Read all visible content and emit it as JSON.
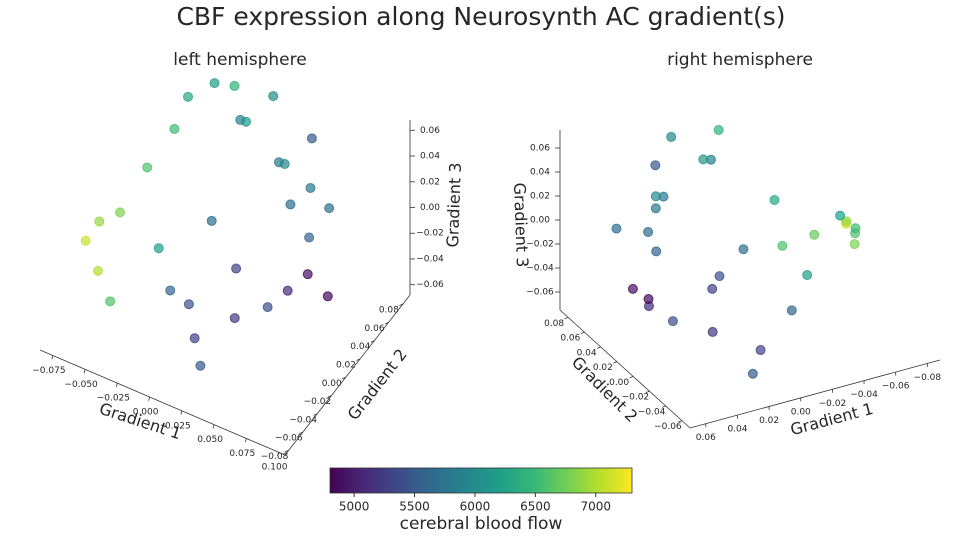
{
  "title": "CBF expression along Neurosynth AC gradient(s)",
  "colorbar": {
    "label": "cerebral blood flow",
    "colormap": "viridis",
    "clim": [
      4800,
      7300
    ],
    "ticks": [
      5000,
      5500,
      6000,
      6500,
      7000
    ]
  },
  "chart_data": [
    {
      "type": "scatter3d",
      "title": "left hemisphere",
      "xlabel": "Gradient 1",
      "ylabel": "Gradient 2",
      "zlabel": "Gradient 3",
      "xlim": [
        -0.085,
        0.105
      ],
      "ylim": [
        -0.085,
        0.09
      ],
      "zlim": [
        -0.068,
        0.068
      ],
      "xticks": [
        {
          "value": -0.075,
          "label": "−0.075"
        },
        {
          "value": -0.05,
          "label": "−0.050"
        },
        {
          "value": -0.025,
          "label": "−0.025"
        },
        {
          "value": 0,
          "label": "0.000"
        },
        0.025,
        {
          "value": 0.05,
          "label": "0.050"
        },
        0.075,
        {
          "value": 0.1,
          "label": "0.100"
        }
      ],
      "yticks": [
        {
          "value": -0.08,
          "label": "−0.08"
        },
        {
          "value": -0.06,
          "label": "−0.06"
        },
        {
          "value": -0.04,
          "label": "−0.04"
        },
        {
          "value": -0.02,
          "label": "−0.02"
        },
        {
          "value": 0,
          "label": "0.00"
        },
        0.02,
        0.04,
        0.06,
        0.08
      ],
      "zticks": [
        {
          "value": -0.06,
          "label": "−0.06"
        },
        {
          "value": -0.04,
          "label": "−0.04"
        },
        {
          "value": -0.02,
          "label": "−0.02"
        },
        {
          "value": 0,
          "label": "0.00"
        },
        0.02,
        0.04,
        0.06
      ],
      "x": [
        -0.08,
        -0.075,
        -0.07,
        -0.065,
        -0.06,
        -0.05,
        -0.045,
        -0.03,
        -0.02,
        -0.01,
        0.0,
        0.01,
        0.02,
        0.03,
        0.04,
        -0.04,
        -0.02,
        0.0,
        0.01,
        0.02,
        0.03,
        0.05,
        0.06,
        0.07,
        0.08,
        0.06,
        0.05,
        0.04,
        -0.01,
        0.02,
        0.07,
        -0.05
      ],
      "y": [
        -0.03,
        -0.02,
        0.0,
        -0.04,
        0.02,
        0.04,
        0.05,
        0.06,
        0.07,
        0.06,
        0.05,
        0.07,
        0.06,
        0.05,
        0.04,
        0.0,
        -0.02,
        -0.03,
        -0.04,
        -0.05,
        -0.02,
        -0.01,
        0.0,
        0.01,
        0.02,
        0.03,
        0.05,
        0.07,
        0.02,
        0.0,
        0.04,
        -0.05
      ],
      "z": [
        -0.02,
        -0.01,
        -0.015,
        -0.03,
        0.01,
        0.03,
        0.05,
        0.06,
        0.055,
        0.04,
        0.05,
        0.06,
        0.02,
        0.03,
        0.01,
        -0.03,
        -0.04,
        -0.035,
        -0.05,
        -0.06,
        -0.04,
        -0.03,
        -0.02,
        -0.01,
        -0.03,
        0.0,
        0.02,
        0.04,
        -0.01,
        -0.02,
        0.02,
        -0.04
      ],
      "c": [
        7100,
        6900,
        6800,
        7000,
        6600,
        6500,
        6300,
        6200,
        6400,
        5900,
        6100,
        6000,
        5800,
        6000,
        5700,
        6200,
        5600,
        5400,
        5300,
        5500,
        5200,
        5400,
        5100,
        4900,
        4850,
        5600,
        5800,
        5500,
        5700,
        5300,
        5700,
        6600
      ]
    },
    {
      "type": "scatter3d",
      "title": "right hemisphere",
      "xlabel": "Gradient 1",
      "ylabel": "Gradient 2",
      "zlabel": "Gradient 3",
      "xlim": [
        -0.088,
        0.07
      ],
      "ylim": [
        -0.07,
        0.09
      ],
      "zlim": [
        -0.075,
        0.075
      ],
      "xticks": [
        {
          "value": -0.08,
          "label": "−0.08"
        },
        {
          "value": -0.06,
          "label": "−0.06"
        },
        {
          "value": -0.04,
          "label": "−0.04"
        },
        {
          "value": -0.02,
          "label": "−0.02"
        },
        {
          "value": 0,
          "label": "0.00"
        },
        0.02,
        0.04,
        0.06
      ],
      "yticks": [
        {
          "value": -0.06,
          "label": "−0.06"
        },
        {
          "value": -0.04,
          "label": "−0.04"
        },
        {
          "value": -0.02,
          "label": "−0.02"
        },
        {
          "value": 0,
          "label": "0.00"
        },
        0.02,
        0.04,
        0.06,
        0.08
      ],
      "zticks": [
        {
          "value": -0.06,
          "label": "−0.06"
        },
        {
          "value": -0.04,
          "label": "−0.04"
        },
        {
          "value": -0.02,
          "label": "−0.02"
        },
        {
          "value": 0,
          "label": "0.00"
        },
        0.02,
        0.04,
        0.06
      ],
      "x": [
        -0.08,
        -0.075,
        -0.07,
        -0.065,
        -0.06,
        -0.05,
        -0.045,
        -0.03,
        -0.02,
        -0.01,
        0.0,
        0.01,
        0.02,
        0.03,
        0.04,
        -0.04,
        -0.02,
        0.0,
        0.01,
        0.02,
        0.03,
        0.05,
        0.06,
        0.065,
        0.05,
        0.04,
        0.03,
        0.02,
        -0.01,
        0.02,
        0.06,
        -0.05
      ],
      "y": [
        0.03,
        0.02,
        0.0,
        0.04,
        -0.02,
        -0.04,
        0.05,
        -0.06,
        0.07,
        0.06,
        0.05,
        0.07,
        0.06,
        0.05,
        0.04,
        0.0,
        -0.02,
        0.03,
        -0.04,
        -0.05,
        -0.02,
        -0.01,
        0.0,
        0.01,
        0.02,
        0.03,
        0.05,
        0.07,
        0.02,
        0.0,
        0.04,
        0.05
      ],
      "z": [
        -0.02,
        -0.01,
        -0.015,
        -0.03,
        0.01,
        0.03,
        0.0,
        0.06,
        0.055,
        0.04,
        0.05,
        0.06,
        0.02,
        0.03,
        0.01,
        -0.03,
        -0.04,
        -0.035,
        -0.05,
        -0.06,
        -0.04,
        -0.03,
        -0.02,
        -0.01,
        -0.03,
        0.0,
        0.02,
        0.04,
        -0.01,
        -0.02,
        0.02,
        -0.04
      ],
      "c": [
        7100,
        6900,
        6800,
        6700,
        6600,
        6500,
        6300,
        6200,
        6400,
        5900,
        6100,
        6000,
        5800,
        6000,
        5700,
        6200,
        5600,
        5400,
        5300,
        5500,
        5200,
        5400,
        5100,
        4900,
        4850,
        5600,
        5800,
        5500,
        5700,
        5300,
        5700,
        6600
      ]
    }
  ]
}
